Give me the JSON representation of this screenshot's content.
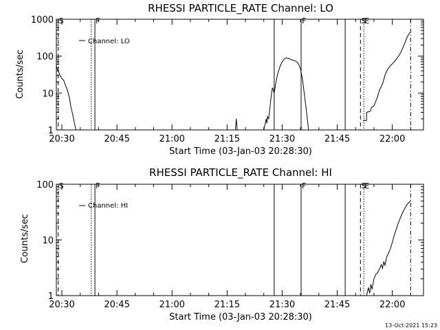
{
  "chart_data": [
    {
      "type": "line",
      "title": "RHESSI PARTICLE_RATE Channel: LO",
      "xlabel": "Start Time (03-Jan-03 20:28:30)",
      "ylabel": "Counts/sec",
      "y_scale": "log",
      "ylim": [
        1,
        1000
      ],
      "y_ticks": [
        "1",
        "10",
        "100",
        "1000"
      ],
      "xlim": [
        "20:28:30",
        "22:08:30"
      ],
      "x_ticks": [
        "20:30",
        "20:45",
        "21:00",
        "21:15",
        "21:30",
        "21:45",
        "22:00"
      ],
      "legend": {
        "position": "top-left",
        "entries": [
          "Channel: LO"
        ]
      },
      "grid": false,
      "series": [
        {
          "name": "Channel: LO",
          "color": "#000000",
          "segments": [
            [
              [
                "20:28:30",
                50
              ],
              [
                "20:29:00",
                40
              ],
              [
                "20:29:30",
                30
              ],
              [
                "20:30:00",
                25
              ],
              [
                "20:30:30",
                22
              ],
              [
                "20:31:00",
                16
              ],
              [
                "20:31:30",
                12
              ],
              [
                "20:32:00",
                8
              ],
              [
                "20:32:30",
                4
              ],
              [
                "20:33:00",
                2.5
              ],
              [
                "20:33:30",
                1.4
              ],
              [
                "20:33:50",
                1
              ]
            ],
            [
              [
                "21:17:15",
                1
              ],
              [
                "21:17:30",
                2
              ],
              [
                "21:17:45",
                1
              ]
            ],
            [
              [
                "21:25:00",
                1
              ],
              [
                "21:25:40",
                2
              ],
              [
                "21:25:50",
                1.5
              ],
              [
                "21:26:00",
                2.3
              ],
              [
                "21:26:20",
                2
              ],
              [
                "21:27:00",
                8
              ],
              [
                "21:27:20",
                14
              ],
              [
                "21:27:50",
                10
              ],
              [
                "21:28:20",
                20
              ],
              [
                "21:28:50",
                35
              ],
              [
                "21:29:30",
                55
              ],
              [
                "21:30:00",
                70
              ],
              [
                "21:30:30",
                82
              ],
              [
                "21:31:00",
                90
              ],
              [
                "21:31:30",
                88
              ],
              [
                "21:32:00",
                85
              ],
              [
                "21:32:30",
                80
              ],
              [
                "21:33:00",
                78
              ],
              [
                "21:33:30",
                75
              ],
              [
                "21:34:00",
                70
              ],
              [
                "21:34:30",
                60
              ],
              [
                "21:35:00",
                45
              ],
              [
                "21:35:30",
                25
              ],
              [
                "21:36:00",
                10
              ],
              [
                "21:36:30",
                4
              ],
              [
                "21:37:00",
                1.5
              ],
              [
                "21:37:10",
                1
              ]
            ],
            [
              [
                "21:52:00",
                1.8
              ],
              [
                "21:53:00",
                1.8
              ],
              [
                "21:53:00",
                3
              ],
              [
                "21:54:00",
                3.2
              ],
              [
                "21:54:20",
                4
              ],
              [
                "21:55:00",
                4.5
              ],
              [
                "21:55:30",
                6
              ],
              [
                "21:56:00",
                8
              ],
              [
                "21:56:30",
                12
              ],
              [
                "21:57:00",
                15
              ],
              [
                "21:57:30",
                20
              ],
              [
                "21:58:00",
                30
              ],
              [
                "21:58:30",
                40
              ],
              [
                "21:59:00",
                48
              ],
              [
                "21:59:30",
                55
              ],
              [
                "22:00:00",
                62
              ],
              [
                "22:00:30",
                70
              ],
              [
                "22:01:00",
                80
              ],
              [
                "22:01:30",
                95
              ],
              [
                "22:02:00",
                110
              ],
              [
                "22:02:30",
                140
              ],
              [
                "22:03:00",
                180
              ],
              [
                "22:03:30",
                240
              ],
              [
                "22:04:00",
                320
              ],
              [
                "22:04:30",
                400
              ],
              [
                "22:05:00",
                450
              ]
            ]
          ]
        }
      ],
      "markers": [
        {
          "time": "20:29:00",
          "style": "dashed",
          "label": "S"
        },
        {
          "time": "20:38:00",
          "style": "dotted",
          "label": ""
        },
        {
          "time": "20:39:00",
          "style": "solid",
          "label": "F"
        },
        {
          "time": "21:27:50",
          "style": "solid",
          "label": ""
        },
        {
          "time": "21:35:10",
          "style": "solid",
          "label": "F"
        },
        {
          "time": "21:47:10",
          "style": "solid",
          "label": ""
        },
        {
          "time": "21:51:20",
          "style": "dashed",
          "label": "S"
        },
        {
          "time": "21:52:15",
          "style": "dotted",
          "label": "E"
        },
        {
          "time": "22:05:00",
          "style": "dashdot",
          "label": ""
        }
      ]
    },
    {
      "type": "line",
      "title": "RHESSI PARTICLE_RATE Channel: HI",
      "xlabel": "Start Time (03-Jan-03 20:28:30)",
      "ylabel": "Counts/sec",
      "y_scale": "log",
      "ylim": [
        1,
        100
      ],
      "y_ticks": [
        "1",
        "10",
        "100"
      ],
      "xlim": [
        "20:28:30",
        "22:08:30"
      ],
      "x_ticks": [
        "20:30",
        "20:45",
        "21:00",
        "21:15",
        "21:30",
        "21:45",
        "22:00"
      ],
      "legend": {
        "position": "top-left",
        "entries": [
          "Channel: HI"
        ]
      },
      "grid": false,
      "series": [
        {
          "name": "Channel: HI",
          "color": "#000000",
          "segments": [
            [
              [
                "21:53:00",
                1
              ],
              [
                "21:53:30",
                1.4
              ],
              [
                "21:53:50",
                1.1
              ],
              [
                "21:54:10",
                1.6
              ],
              [
                "21:54:30",
                1.3
              ],
              [
                "21:55:00",
                2
              ],
              [
                "21:55:30",
                2.4
              ],
              [
                "21:56:00",
                2.6
              ],
              [
                "21:56:30",
                3
              ],
              [
                "21:57:00",
                3.6
              ],
              [
                "21:57:20",
                3.1
              ],
              [
                "21:57:40",
                4.1
              ],
              [
                "21:58:00",
                3.5
              ],
              [
                "21:58:30",
                5
              ],
              [
                "21:59:00",
                5.8
              ],
              [
                "21:59:30",
                7
              ],
              [
                "22:00:00",
                9
              ],
              [
                "22:00:30",
                12
              ],
              [
                "22:01:00",
                15
              ],
              [
                "22:01:30",
                19
              ],
              [
                "22:02:00",
                23
              ],
              [
                "22:02:30",
                28
              ],
              [
                "22:03:00",
                33
              ],
              [
                "22:03:30",
                38
              ],
              [
                "22:04:00",
                43
              ],
              [
                "22:04:30",
                47
              ],
              [
                "22:05:00",
                50
              ]
            ]
          ]
        }
      ],
      "markers": [
        {
          "time": "20:29:00",
          "style": "dashed",
          "label": "S"
        },
        {
          "time": "20:38:00",
          "style": "dotted",
          "label": ""
        },
        {
          "time": "20:39:00",
          "style": "solid",
          "label": "F"
        },
        {
          "time": "21:27:50",
          "style": "solid",
          "label": ""
        },
        {
          "time": "21:35:10",
          "style": "solid",
          "label": "F"
        },
        {
          "time": "21:47:10",
          "style": "solid",
          "label": ""
        },
        {
          "time": "21:51:20",
          "style": "dashed",
          "label": "S"
        },
        {
          "time": "21:52:15",
          "style": "dotted",
          "label": "E"
        },
        {
          "time": "22:05:00",
          "style": "dashdot",
          "label": ""
        }
      ]
    }
  ],
  "footer": {
    "timestamp": "13-Oct-2021 15:23"
  }
}
